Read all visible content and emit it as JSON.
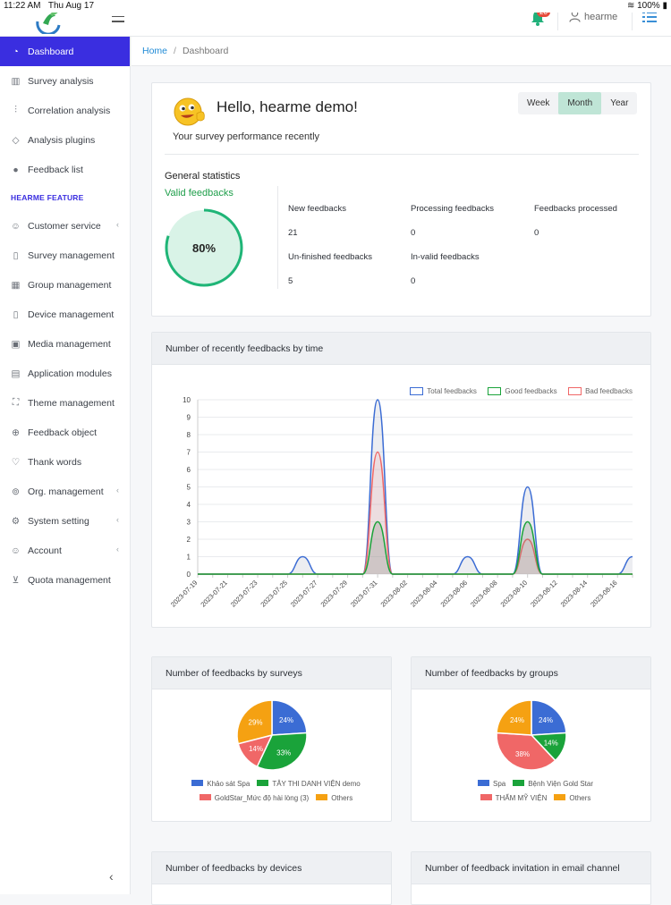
{
  "status_bar": {
    "time": "11:22 AM",
    "date": "Thu Aug 17",
    "battery": "100%"
  },
  "header": {
    "notification_count": "20",
    "user_name": "hearme"
  },
  "sidebar": {
    "items": [
      {
        "label": "Dashboard",
        "icon": "dashboard-icon"
      },
      {
        "label": "Survey analysis",
        "icon": "bar-chart-icon"
      },
      {
        "label": "Correlation analysis",
        "icon": "sliders-icon"
      },
      {
        "label": "Analysis plugins",
        "icon": "tag-icon"
      },
      {
        "label": "Feedback list",
        "icon": "chat-icon"
      }
    ],
    "section_label": "HEARME FEATURE",
    "feature_items": [
      {
        "label": "Customer service",
        "icon": "user-support-icon",
        "caret": true
      },
      {
        "label": "Survey management",
        "icon": "document-icon",
        "caret": false
      },
      {
        "label": "Group management",
        "icon": "grid-icon",
        "caret": false
      },
      {
        "label": "Device management",
        "icon": "tablet-icon",
        "caret": false
      },
      {
        "label": "Media management",
        "icon": "image-icon",
        "caret": false
      },
      {
        "label": "Application modules",
        "icon": "clipboard-icon",
        "caret": false
      },
      {
        "label": "Theme management",
        "icon": "frame-icon",
        "caret": false
      },
      {
        "label": "Feedback object",
        "icon": "target-icon",
        "caret": false
      },
      {
        "label": "Thank words",
        "icon": "heart-icon",
        "caret": false
      },
      {
        "label": "Org. management",
        "icon": "org-icon",
        "caret": true
      },
      {
        "label": "System setting",
        "icon": "gear-icon",
        "caret": true
      },
      {
        "label": "Account",
        "icon": "account-icon",
        "caret": true
      },
      {
        "label": "Quota management",
        "icon": "cart-icon",
        "caret": false
      }
    ]
  },
  "breadcrumb": {
    "home": "Home",
    "current": "Dashboard"
  },
  "welcome": {
    "greeting": "Hello, hearme demo!",
    "subtitle": "Your survey performance recently",
    "periods": [
      "Week",
      "Month",
      "Year"
    ],
    "selected_period": "Month"
  },
  "general_stats": {
    "title": "General statistics",
    "valid_title": "Valid feedbacks",
    "valid_percent": "80%",
    "valid_fraction": 0.8,
    "labels": {
      "new": "New feedbacks",
      "processing": "Processing feedbacks",
      "processed": "Feedbacks processed",
      "unfinished": "Un-finished feedbacks",
      "invalid": "In-valid feedbacks"
    },
    "values": {
      "new": "21",
      "processing": "0",
      "processed": "0",
      "unfinished": "5",
      "invalid": "0"
    }
  },
  "colors": {
    "total": "#3b6cd4",
    "good": "#1aa33a",
    "bad": "#f06767",
    "accent": "#3a2ee0",
    "pie_orange": "#f5a112"
  },
  "chart_data": [
    {
      "type": "line",
      "title": "Number of recently feedbacks by time",
      "x": [
        "2023-07-19",
        "2023-07-20",
        "2023-07-21",
        "2023-07-22",
        "2023-07-23",
        "2023-07-24",
        "2023-07-25",
        "2023-07-26",
        "2023-07-27",
        "2023-07-28",
        "2023-07-29",
        "2023-07-30",
        "2023-07-31",
        "2023-08-01",
        "2023-08-02",
        "2023-08-03",
        "2023-08-04",
        "2023-08-05",
        "2023-08-06",
        "2023-08-07",
        "2023-08-08",
        "2023-08-09",
        "2023-08-10",
        "2023-08-11",
        "2023-08-12",
        "2023-08-13",
        "2023-08-14",
        "2023-08-15",
        "2023-08-16",
        "2023-08-17"
      ],
      "x_tick_labels": [
        "2023-07-19",
        "2023-07-21",
        "2023-07-23",
        "2023-07-25",
        "2023-07-27",
        "2023-07-29",
        "2023-07-31",
        "2023-08-02",
        "2023-08-04",
        "2023-08-06",
        "2023-08-08",
        "2023-08-10",
        "2023-08-12",
        "2023-08-14",
        "2023-08-16"
      ],
      "series": [
        {
          "name": "Total feedbacks",
          "values": [
            0,
            0,
            0,
            0,
            0,
            0,
            0,
            1,
            0,
            0,
            0,
            0,
            10,
            0,
            0,
            0,
            0,
            0,
            1,
            0,
            0,
            0,
            5,
            0,
            0,
            0,
            0,
            0,
            0,
            1
          ]
        },
        {
          "name": "Good feedbacks",
          "values": [
            0,
            0,
            0,
            0,
            0,
            0,
            0,
            0,
            0,
            0,
            0,
            0,
            3,
            0,
            0,
            0,
            0,
            0,
            0,
            0,
            0,
            0,
            3,
            0,
            0,
            0,
            0,
            0,
            0,
            0
          ]
        },
        {
          "name": "Bad feedbacks",
          "values": [
            0,
            0,
            0,
            0,
            0,
            0,
            0,
            0,
            0,
            0,
            0,
            0,
            7,
            0,
            0,
            0,
            0,
            0,
            0,
            0,
            0,
            0,
            2,
            0,
            0,
            0,
            0,
            0,
            0,
            0
          ]
        }
      ],
      "ylim": [
        0,
        10
      ],
      "y_ticks": [
        0,
        1,
        2,
        3,
        4,
        5,
        6,
        7,
        8,
        9,
        10
      ],
      "legend": "top-right"
    },
    {
      "type": "pie",
      "title": "Number of feedbacks by surveys",
      "labels": [
        "Khảo sát Spa",
        "TÂY THI DANH VIỆN demo",
        "GoldStar_Mức độ hài lòng (3)",
        "Others"
      ],
      "values": [
        24,
        33,
        14,
        29
      ],
      "value_labels": [
        "24%",
        "33%",
        "14%",
        "29%"
      ],
      "colors": [
        "#3b6cd4",
        "#1aa33a",
        "#f06767",
        "#f5a112"
      ]
    },
    {
      "type": "pie",
      "title": "Number of feedbacks by groups",
      "labels": [
        "Spa",
        "Bệnh Viện Gold Star",
        "THẨM MỸ VIỆN",
        "Others"
      ],
      "values": [
        24,
        14,
        38,
        24
      ],
      "value_labels": [
        "24%",
        "14%",
        "38%",
        "24%"
      ],
      "colors": [
        "#3b6cd4",
        "#1aa33a",
        "#f06767",
        "#f5a112"
      ]
    }
  ],
  "bottom_cards": {
    "devices_title": "Number of feedbacks by devices",
    "email_title": "Number of feedback invitation in email channel"
  }
}
